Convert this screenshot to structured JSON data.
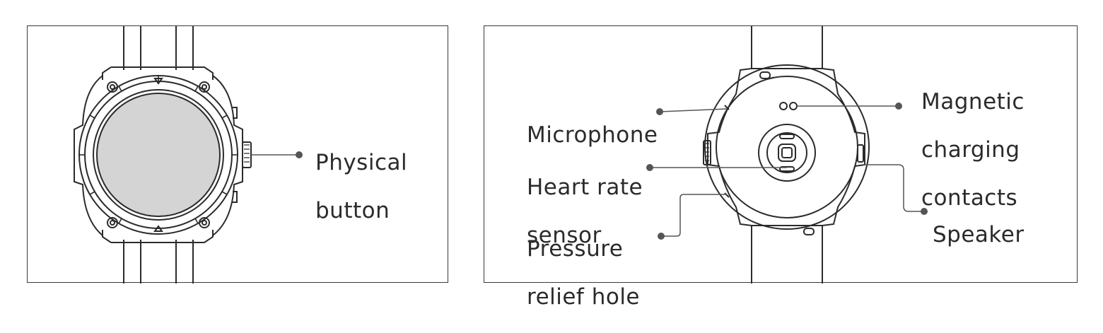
{
  "front_view": {
    "physical_button": [
      "Physical",
      "button"
    ]
  },
  "back_view": {
    "microphone": [
      "Microphone"
    ],
    "heart_rate_sensor": [
      "Heart rate",
      "sensor"
    ],
    "pressure_relief_hole": [
      "Pressure",
      "relief  hole"
    ],
    "magnetic_charging_contacts": [
      "Magnetic",
      "charging",
      "contacts"
    ],
    "speaker": [
      "Speaker"
    ]
  },
  "colors": {
    "line": "#2b2b2b",
    "screen_fill": "#d4d4d4",
    "leader_dot": "#555555"
  }
}
